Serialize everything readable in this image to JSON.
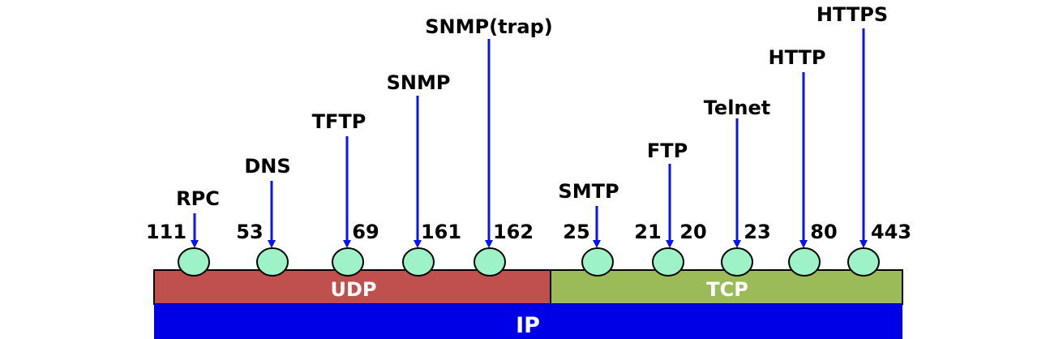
{
  "layers": {
    "udp": {
      "label": "UDP",
      "color": "#C0504D"
    },
    "tcp": {
      "label": "TCP",
      "color": "#9BBB59"
    },
    "ip": {
      "label": "IP",
      "color": "#0000E6"
    }
  },
  "colors": {
    "arrow": "#0A14E6",
    "port_node_fill": "#9EF2C8",
    "port_node_stroke": "#000000",
    "layer_border": "#000000"
  },
  "ports": [
    {
      "protocol": "RPC",
      "port": "111",
      "layer": "UDP"
    },
    {
      "protocol": "DNS",
      "port": "53",
      "layer": "UDP"
    },
    {
      "protocol": "TFTP",
      "port": "69",
      "layer": "UDP"
    },
    {
      "protocol": "SNMP",
      "port": "161",
      "layer": "UDP"
    },
    {
      "protocol": "SNMP(trap)",
      "port": "162",
      "layer": "UDP"
    },
    {
      "protocol": "SMTP",
      "port": "25",
      "layer": "TCP"
    },
    {
      "protocol": "FTP",
      "port": "21",
      "layer": "TCP"
    },
    {
      "protocol": "",
      "port": "20",
      "layer": "TCP"
    },
    {
      "protocol": "Telnet",
      "port": "23",
      "layer": "TCP"
    },
    {
      "protocol": "HTTP",
      "port": "80",
      "layer": "TCP"
    },
    {
      "protocol": "HTTPS",
      "port": "443",
      "layer": "TCP"
    }
  ]
}
